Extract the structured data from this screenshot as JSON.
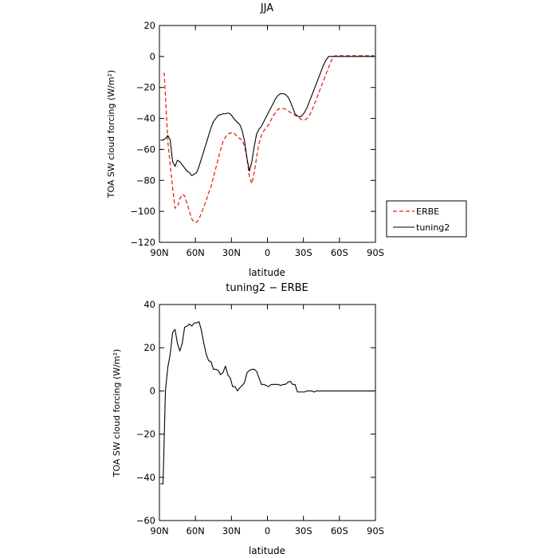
{
  "chart_data": [
    {
      "type": "line",
      "title": "JJA",
      "xlabel": "latitude",
      "ylabel": "TOA SW cloud forcing (W/m²)",
      "xlim": [
        -90,
        90
      ],
      "ylim": [
        -120,
        20
      ],
      "x_ticks": [
        -90,
        -60,
        -30,
        0,
        30,
        60,
        90
      ],
      "x_tick_labels": [
        "90N",
        "60N",
        "30N",
        "0",
        "30S",
        "60S",
        "90S"
      ],
      "y_ticks": [
        20,
        0,
        -20,
        -40,
        -60,
        -80,
        -100,
        -120
      ],
      "y_tick_labels": [
        "20",
        "0",
        "−20",
        "−40",
        "−60",
        "−80",
        "−100",
        "−120"
      ],
      "grid": false,
      "legend_position": "right, outside plot",
      "series": [
        {
          "name": "ERBE",
          "color": "#e8231a",
          "style": "dashed",
          "x": [
            -87,
            -86,
            -85,
            -83,
            -81,
            -79,
            -77,
            -75,
            -73,
            -71,
            -69,
            -67,
            -65,
            -63,
            -61,
            -59,
            -57,
            -55,
            -53,
            -51,
            -49,
            -47,
            -45,
            -43,
            -41,
            -39,
            -37,
            -35,
            -33,
            -31,
            -29,
            -27,
            -25,
            -23,
            -21,
            -19,
            -17,
            -15,
            -13,
            -11,
            -9,
            -7,
            -5,
            -3,
            -1,
            1,
            3,
            5,
            7,
            9,
            11,
            13,
            15,
            17,
            19,
            21,
            23,
            25,
            27,
            29,
            31,
            33,
            35,
            37,
            39,
            41,
            43,
            45,
            47,
            49,
            51,
            53,
            55,
            57,
            59,
            61,
            63,
            65,
            67,
            69,
            71,
            73,
            75,
            77,
            79,
            81,
            83,
            85,
            87,
            89
          ],
          "y": [
            -11,
            -11,
            -25,
            -55,
            -70,
            -85,
            -98,
            -97,
            -92,
            -89,
            -90,
            -95,
            -100,
            -105,
            -107,
            -107,
            -105,
            -101,
            -97,
            -93,
            -88,
            -84,
            -78,
            -72,
            -66,
            -60,
            -55,
            -52,
            -50,
            -49.5,
            -49,
            -50,
            -52,
            -53,
            -54,
            -58,
            -66,
            -78,
            -82,
            -75,
            -65,
            -56,
            -51,
            -48,
            -46,
            -44,
            -41,
            -38,
            -36,
            -34,
            -33.5,
            -33.5,
            -34,
            -35,
            -36,
            -37,
            -38,
            -39,
            -40,
            -41,
            -41,
            -40,
            -38,
            -35,
            -31,
            -27,
            -23,
            -19,
            -15,
            -11,
            -7,
            -3,
            0,
            0.5,
            0.5,
            0.5,
            0.5,
            0.5,
            0.5,
            0.5,
            0.5,
            0.5,
            0.5,
            0.5,
            0.5,
            0.5,
            0.5,
            0.5,
            0.5,
            0.5
          ]
        },
        {
          "name": "tuning2",
          "color": "#000000",
          "style": "solid",
          "x": [
            -89,
            -87,
            -85,
            -83,
            -81,
            -79,
            -77,
            -75,
            -73,
            -71,
            -69,
            -67,
            -65,
            -63,
            -61,
            -59,
            -57,
            -55,
            -53,
            -51,
            -49,
            -47,
            -45,
            -43,
            -41,
            -39,
            -37,
            -35,
            -33,
            -31,
            -29,
            -27,
            -25,
            -23,
            -21,
            -19,
            -17,
            -15,
            -13,
            -11,
            -9,
            -7,
            -5,
            -3,
            -1,
            1,
            3,
            5,
            7,
            9,
            11,
            13,
            15,
            17,
            19,
            21,
            23,
            25,
            27,
            29,
            31,
            33,
            35,
            37,
            39,
            41,
            43,
            45,
            47,
            49,
            51,
            53,
            55,
            57,
            59,
            61,
            63,
            65,
            67,
            69,
            71,
            73,
            75,
            77,
            79,
            81,
            83,
            85,
            87,
            89
          ],
          "y": [
            -54,
            -54,
            -53,
            -51,
            -54,
            -68,
            -71,
            -67,
            -68,
            -70,
            -72,
            -74,
            -75,
            -77,
            -76,
            -75,
            -71,
            -66,
            -61,
            -56,
            -51,
            -46,
            -42,
            -40,
            -38,
            -37.5,
            -37,
            -37,
            -36.5,
            -37,
            -39,
            -41,
            -42.5,
            -44,
            -48,
            -55,
            -66,
            -74,
            -68,
            -58,
            -50,
            -47,
            -45,
            -42,
            -39,
            -36,
            -33,
            -30,
            -27,
            -25,
            -24,
            -24,
            -24.5,
            -26,
            -29,
            -33,
            -37,
            -38.5,
            -39,
            -38,
            -36,
            -33,
            -29,
            -25,
            -21,
            -17,
            -13,
            -9,
            -5,
            -2,
            0,
            0,
            0,
            0,
            0,
            0,
            0,
            0,
            0,
            0,
            0,
            0,
            0,
            0,
            0,
            0,
            0,
            0,
            0,
            0
          ]
        }
      ]
    },
    {
      "type": "line",
      "title": "tuning2 − ERBE",
      "xlabel": "latitude",
      "ylabel": "TOA SW cloud forcing (W/m²)",
      "xlim": [
        -90,
        90
      ],
      "ylim": [
        -60,
        40
      ],
      "x_ticks": [
        -90,
        -60,
        -30,
        0,
        30,
        60,
        90
      ],
      "x_tick_labels": [
        "90N",
        "60N",
        "30N",
        "0",
        "30S",
        "60S",
        "90S"
      ],
      "y_ticks": [
        40,
        20,
        0,
        -20,
        -40,
        -60
      ],
      "y_tick_labels": [
        "40",
        "20",
        "0",
        "−20",
        "−40",
        "−60"
      ],
      "grid": false,
      "series": [
        {
          "color": "#000000",
          "style": "solid",
          "x": [
            -89,
            -87,
            -85,
            -83,
            -81,
            -79,
            -77,
            -75,
            -73,
            -71,
            -69,
            -67,
            -65,
            -63,
            -61,
            -59,
            -57,
            -55,
            -53,
            -51,
            -49,
            -47,
            -45,
            -43,
            -41,
            -39,
            -37,
            -35,
            -33,
            -31,
            -29,
            -27,
            -25,
            -23,
            -21,
            -19,
            -17,
            -15,
            -13,
            -11,
            -9,
            -7,
            -5,
            -3,
            -1,
            1,
            3,
            5,
            7,
            9,
            11,
            13,
            15,
            17,
            19,
            21,
            23,
            25,
            27,
            29,
            31,
            33,
            35,
            37,
            39,
            41,
            43,
            45,
            47,
            49,
            51,
            53,
            55,
            57,
            59,
            61,
            63,
            65,
            67,
            69,
            71,
            73,
            75,
            77,
            79,
            81,
            83,
            85,
            87,
            89
          ],
          "y": [
            -43,
            -43,
            0,
            11,
            17,
            27,
            28.5,
            22,
            18.5,
            22,
            29.5,
            30,
            31,
            30,
            31.5,
            31.5,
            32,
            28,
            22,
            17,
            14,
            13.5,
            10,
            10,
            9.5,
            7.5,
            8.5,
            11.5,
            7.5,
            6,
            2,
            2,
            0,
            1.5,
            2.5,
            4,
            8.5,
            9.5,
            10,
            10,
            9,
            6,
            3,
            3,
            2.5,
            2,
            3,
            3,
            3,
            3,
            2.5,
            3,
            3,
            4,
            4.5,
            3,
            3,
            -0.5,
            -0.5,
            -0.5,
            -0.5,
            0,
            0,
            0,
            -0.5,
            0,
            0,
            0,
            0,
            0,
            0,
            0,
            0,
            0,
            0,
            0,
            0,
            0,
            0,
            0,
            0,
            0,
            0,
            0,
            0,
            0,
            0,
            0,
            0,
            0
          ]
        }
      ]
    }
  ]
}
